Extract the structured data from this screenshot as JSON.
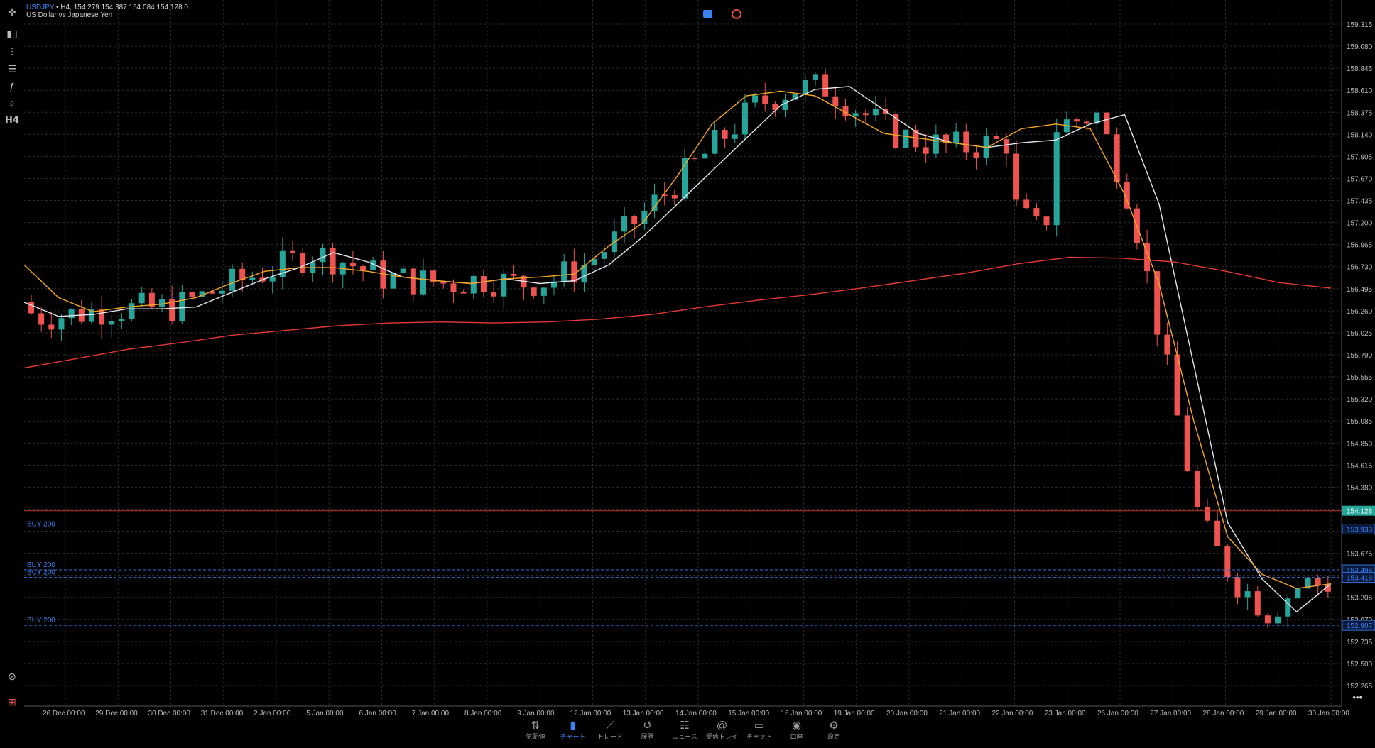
{
  "header": {
    "symbol": "USDJPY",
    "marker": "•",
    "ohlc_line": "H4, 154.279 154.387 154.084 154.128 0",
    "description": "US Dollar vs Japanese Yen"
  },
  "toolbar": {
    "crosshair_icon": "crosshair-icon",
    "chart_type_icon": "candles-icon",
    "timeframe": "H4"
  },
  "price_axis": [
    "159.315",
    "159.080",
    "158.845",
    "158.610",
    "158.375",
    "158.140",
    "157.905",
    "157.670",
    "157.435",
    "157.200",
    "156.965",
    "156.730",
    "156.495",
    "156.260",
    "156.025",
    "155.790",
    "155.555",
    "155.320",
    "155.085",
    "154.850",
    "154.615",
    "154.380",
    "154.145",
    "153.910",
    "153.675",
    "153.440",
    "153.205",
    "152.970",
    "152.735",
    "152.500",
    "152.265"
  ],
  "time_axis": [
    "26 Dec 00:00",
    "29 Dec 00:00",
    "30 Dec 00:00",
    "31 Dec 00:00",
    "2 Jan 00:00",
    "5 Jan 00:00",
    "6 Jan 00:00",
    "7 Jan 00:00",
    "8 Jan 00:00",
    "9 Jan 00:00",
    "12 Jan 00:00",
    "13 Jan 00:00",
    "14 Jan 00:00",
    "15 Jan 00:00",
    "16 Jan 00:00",
    "19 Jan 00:00",
    "20 Jan 00:00",
    "21 Jan 00:00",
    "22 Jan 00:00",
    "23 Jan 00:00",
    "26 Jan 00:00",
    "27 Jan 00:00",
    "28 Jan 00:00",
    "29 Jan 00:00",
    "30 Jan 00:00"
  ],
  "current_price": "154.128",
  "orders": [
    {
      "label": "BUY 200",
      "price": "153.933"
    },
    {
      "label": "BUY 200",
      "price": "153.498"
    },
    {
      "label": "BUY 200",
      "price": "153.418"
    },
    {
      "label": "BUY 200",
      "price": "152.907"
    }
  ],
  "colors": {
    "bull": "#26a69a",
    "bear": "#ef5350",
    "ma_fast": "#e6e6f0",
    "ma_mid": "#f5a623",
    "ma_slow": "#e53935",
    "grid": "#2b2b2b",
    "order": "#2f6fe0",
    "accent": "#3a83f7"
  },
  "chart_data": {
    "type": "candlestick",
    "series": [
      {
        "name": "MA fast",
        "values": [
          156.35,
          156.2,
          156.22,
          156.28,
          156.28,
          156.3,
          156.45,
          156.6,
          156.72,
          156.88,
          156.78,
          156.62,
          156.58,
          156.55,
          156.6,
          156.55,
          156.58,
          156.75,
          157.05,
          157.4,
          157.75,
          158.1,
          158.45,
          158.62,
          158.65,
          158.4,
          158.15,
          158.05,
          158.0,
          158.05,
          158.08,
          158.25,
          158.35,
          157.4,
          155.7,
          154.0,
          153.4,
          153.05,
          153.35
        ]
      },
      {
        "name": "MA mid",
        "values": [
          156.75,
          156.4,
          156.25,
          156.3,
          156.33,
          156.4,
          156.55,
          156.68,
          156.72,
          156.72,
          156.68,
          156.62,
          156.58,
          156.55,
          156.6,
          156.62,
          156.65,
          156.95,
          157.2,
          157.7,
          158.25,
          158.55,
          158.6,
          158.55,
          158.35,
          158.15,
          158.1,
          158.05,
          158.0,
          158.2,
          158.25,
          158.2,
          157.5,
          156.55,
          155.1,
          153.85,
          153.45,
          153.3,
          153.35
        ]
      },
      {
        "name": "MA slow",
        "values": [
          155.65,
          155.75,
          155.85,
          155.92,
          156.0,
          156.05,
          156.1,
          156.13,
          156.14,
          156.13,
          156.14,
          156.17,
          156.22,
          156.3,
          156.37,
          156.43,
          156.5,
          156.58,
          156.66,
          156.76,
          156.83,
          156.82,
          156.78,
          156.68,
          156.56,
          156.5
        ]
      }
    ],
    "candles_count": 130
  },
  "nav": [
    {
      "label": "気配値",
      "icon": "quotes-icon"
    },
    {
      "label": "チャート",
      "icon": "chart-icon"
    },
    {
      "label": "トレード",
      "icon": "trade-icon"
    },
    {
      "label": "履歴",
      "icon": "history-icon"
    },
    {
      "label": "ニュース",
      "icon": "news-icon"
    },
    {
      "label": "受信トレイ",
      "icon": "mail-icon"
    },
    {
      "label": "チャット",
      "icon": "chat-icon"
    },
    {
      "label": "口座",
      "icon": "account-icon"
    },
    {
      "label": "設定",
      "icon": "settings-icon"
    }
  ]
}
